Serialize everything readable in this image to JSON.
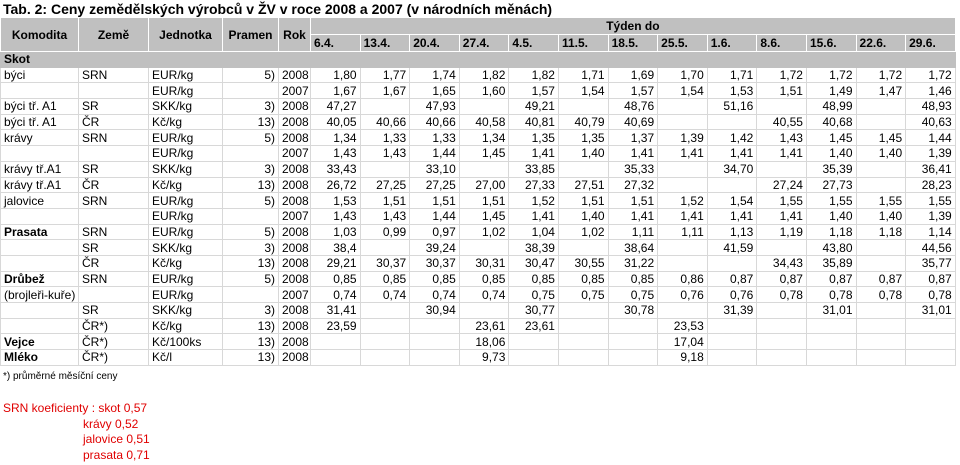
{
  "header": {
    "title": "Tab. 2: Ceny zemědělských výrobců v ŽV v roce 2008 a 2007 (v národních měnách)"
  },
  "table": {
    "columns": [
      "Komodita",
      "Země",
      "Jednotka",
      "Pramen",
      "Rok"
    ],
    "week_label": "Týden do",
    "weeks": [
      "6.4.",
      "13.4.",
      "20.4.",
      "27.4.",
      "4.5.",
      "11.5.",
      "18.5.",
      "25.5.",
      "1.6.",
      "8.6.",
      "15.6.",
      "22.6.",
      "29.6."
    ],
    "section": "Skot",
    "rows": [
      [
        "býci",
        "SRN",
        "EUR/kg",
        "5)",
        "2008",
        "1,80",
        "1,77",
        "1,74",
        "1,82",
        "1,82",
        "1,71",
        "1,69",
        "1,70",
        "1,71",
        "1,72",
        "1,72",
        "1,72",
        "1,72"
      ],
      [
        null,
        null,
        "EUR/kg",
        null,
        "2007",
        "1,67",
        "1,67",
        "1,65",
        "1,60",
        "1,57",
        "1,54",
        "1,57",
        "1,54",
        "1,53",
        "1,51",
        "1,49",
        "1,47",
        "1,46"
      ],
      [
        "býci tř. A1",
        "SR",
        "SKK/kg",
        "3)",
        "2008",
        "47,27",
        null,
        "47,93",
        null,
        "49,21",
        null,
        "48,76",
        null,
        "51,16",
        null,
        "48,99",
        null,
        "48,93"
      ],
      [
        "býci tř. A1",
        "ČR",
        "Kč/kg",
        "13)",
        "2008",
        "40,05",
        "40,66",
        "40,66",
        "40,58",
        "40,81",
        "40,79",
        "40,69",
        null,
        null,
        "40,55",
        "40,68",
        null,
        "40,63"
      ],
      [
        "krávy",
        "SRN",
        "EUR/kg",
        "5)",
        "2008",
        "1,34",
        "1,33",
        "1,33",
        "1,34",
        "1,35",
        "1,35",
        "1,37",
        "1,39",
        "1,42",
        "1,43",
        "1,45",
        "1,45",
        "1,44"
      ],
      [
        null,
        null,
        "EUR/kg",
        null,
        "2007",
        "1,43",
        "1,43",
        "1,44",
        "1,45",
        "1,41",
        "1,40",
        "1,41",
        "1,41",
        "1,41",
        "1,41",
        "1,40",
        "1,40",
        "1,39"
      ],
      [
        "krávy tř.A1",
        "SR",
        "SKK/kg",
        "3)",
        "2008",
        "33,43",
        null,
        "33,10",
        null,
        "33,85",
        null,
        "35,33",
        null,
        "34,70",
        null,
        "35,39",
        null,
        "36,41"
      ],
      [
        "krávy tř.A1",
        "ČR",
        "Kč/kg",
        "13)",
        "2008",
        "26,72",
        "27,25",
        "27,25",
        "27,00",
        "27,33",
        "27,51",
        "27,32",
        null,
        null,
        "27,24",
        "27,73",
        null,
        "28,23"
      ],
      [
        "jalovice",
        "SRN",
        "EUR/kg",
        "5)",
        "2008",
        "1,53",
        "1,51",
        "1,51",
        "1,51",
        "1,52",
        "1,51",
        "1,51",
        "1,52",
        "1,54",
        "1,55",
        "1,55",
        "1,55",
        "1,55"
      ],
      [
        null,
        null,
        "EUR/kg",
        null,
        "2007",
        "1,43",
        "1,43",
        "1,44",
        "1,45",
        "1,41",
        "1,40",
        "1,41",
        "1,41",
        "1,41",
        "1,41",
        "1,40",
        "1,40",
        "1,39"
      ],
      [
        "Prasata",
        "SRN",
        "EUR/kg",
        "5)",
        "2008",
        "1,03",
        "0,99",
        "0,97",
        "1,02",
        "1,04",
        "1,02",
        "1,11",
        "1,11",
        "1,13",
        "1,19",
        "1,18",
        "1,18",
        "1,14"
      ],
      [
        null,
        "SR",
        "SKK/kg",
        "3)",
        "2008",
        "38,4",
        null,
        "39,24",
        null,
        "38,39",
        null,
        "38,64",
        null,
        "41,59",
        null,
        "43,80",
        null,
        "44,56"
      ],
      [
        null,
        "ČR",
        "Kč/kg",
        "13)",
        "2008",
        "29,21",
        "30,37",
        "30,37",
        "30,31",
        "30,47",
        "30,55",
        "31,22",
        null,
        null,
        "34,43",
        "35,89",
        null,
        "35,77"
      ],
      [
        "Drůbež",
        "SRN",
        "EUR/kg",
        "5)",
        "2008",
        "0,85",
        "0,85",
        "0,85",
        "0,85",
        "0,85",
        "0,85",
        "0,85",
        "0,86",
        "0,87",
        "0,87",
        "0,87",
        "0,87",
        "0,87"
      ],
      [
        "(brojleři-kuře)",
        null,
        "EUR/kg",
        null,
        "2007",
        "0,74",
        "0,74",
        "0,74",
        "0,74",
        "0,75",
        "0,75",
        "0,75",
        "0,76",
        "0,76",
        "0,78",
        "0,78",
        "0,78",
        "0,78"
      ],
      [
        null,
        "SR",
        "SKK/kg",
        "3)",
        "2008",
        "31,41",
        null,
        "30,94",
        null,
        "30,77",
        null,
        "30,78",
        null,
        "31,39",
        null,
        "31,01",
        null,
        "31,01"
      ],
      [
        null,
        "ČR*)",
        "Kč/kg",
        "13)",
        "2008",
        "23,59",
        null,
        null,
        "23,61",
        "23,61",
        null,
        null,
        "23,53",
        null,
        null,
        null,
        null,
        null
      ],
      [
        "Vejce",
        "ČR*)",
        "Kč/100ks",
        "13)",
        "2008",
        null,
        null,
        null,
        "18,06",
        null,
        null,
        null,
        "17,04",
        null,
        null,
        null,
        null,
        null
      ],
      [
        "Mléko",
        "ČR*)",
        "Kč/l",
        "13)",
        "2008",
        null,
        null,
        null,
        "9,73",
        null,
        null,
        null,
        "9,18",
        null,
        null,
        null,
        null,
        null
      ]
    ]
  },
  "footnote": "*) průměrné měsíční ceny",
  "coefficients": [
    "SRN koeficienty : skot 0,57",
    "krávy 0,52",
    "jalovice 0,51",
    "prasata 0,71"
  ]
}
